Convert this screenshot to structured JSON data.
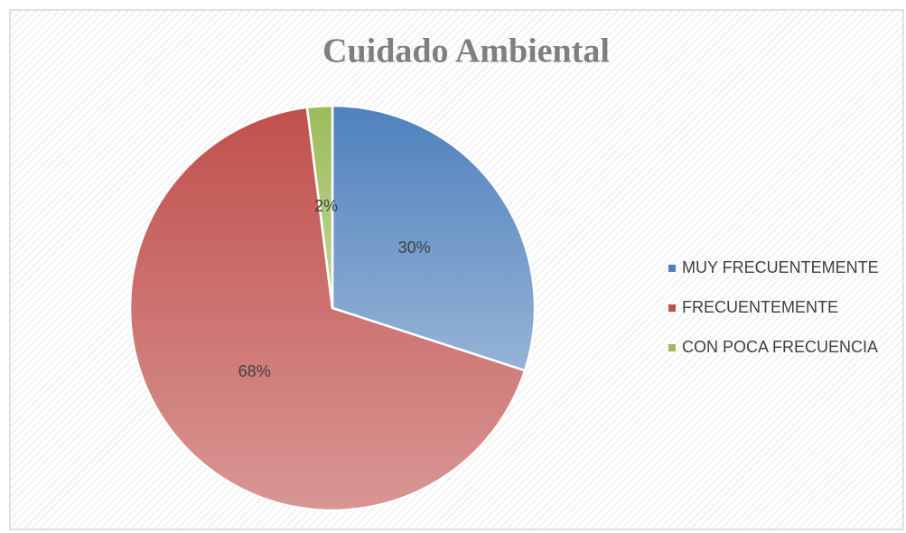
{
  "chart_data": {
    "type": "pie",
    "title": "Cuidado Ambiental",
    "categories": [
      "MUY FRECUENTEMENTE",
      "FRECUENTEMENTE",
      "CON POCA FRECUENCIA"
    ],
    "values": [
      30,
      68,
      2
    ],
    "value_labels": [
      "30%",
      "68%",
      "2%"
    ],
    "colors": [
      "#4f81bd",
      "#c0504d",
      "#9bbb59"
    ],
    "legend": "right"
  }
}
